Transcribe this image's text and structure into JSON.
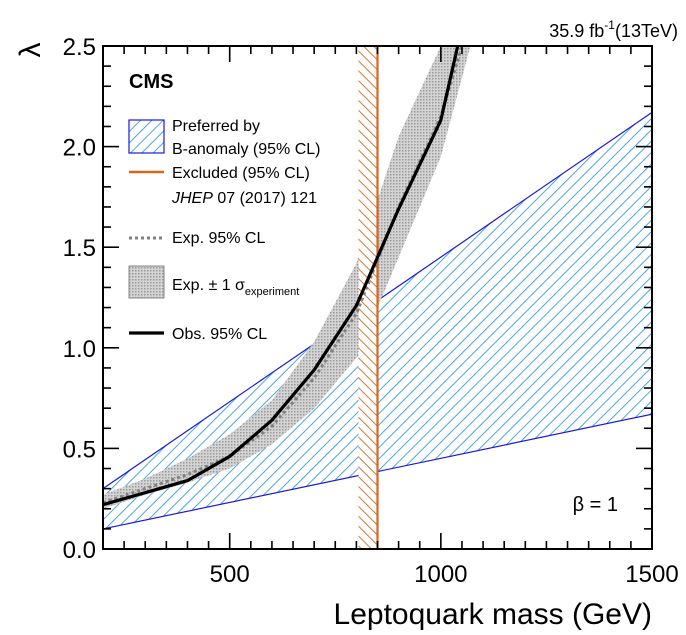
{
  "chart_data": {
    "type": "line",
    "experiment": "CMS",
    "lumi_label": "35.9 fb",
    "lumi_exponent": "-1",
    "energy_label": "(13TeV)",
    "xlabel": "Leptoquark mass (GeV)",
    "ylabel": "λ",
    "xlim": [
      200,
      1500
    ],
    "ylim": [
      0.0,
      2.5
    ],
    "x_ticks": [
      500,
      1000,
      1500
    ],
    "x_tick_labels": [
      "500",
      "1000",
      "1500"
    ],
    "y_ticks": [
      0.0,
      0.5,
      1.0,
      1.5,
      2.0,
      2.5
    ],
    "y_tick_labels": [
      "0.0",
      "0.5",
      "1.0",
      "1.5",
      "2.0",
      "2.5"
    ],
    "annotation": "β = 1",
    "legend": {
      "placement": "top-left",
      "preferred": [
        "Preferred by",
        "B-anomaly (95% CL)"
      ],
      "excluded": [
        "Excluded (95% CL)",
        "JHEP",
        " 07 (2017) 121"
      ],
      "expected": "Exp. 95% CL",
      "band": [
        "Exp. ± 1 σ",
        "experiment"
      ],
      "observed": "Obs. 95% CL"
    },
    "colors": {
      "preferred": "#1f8fe6",
      "preferred_edge": "#1a1adb",
      "excluded": "#d2691e",
      "band": "#b8b8b8",
      "expected": "#808080",
      "observed": "#000000"
    },
    "series": [
      {
        "name": "Preferred by B-anomaly (95% CL)",
        "kind": "region",
        "lower": {
          "x": [
            200,
            1500
          ],
          "y": [
            0.1,
            0.67
          ]
        },
        "upper": {
          "x": [
            200,
            1500
          ],
          "y": [
            0.3,
            2.17
          ]
        }
      },
      {
        "name": "Excluded (95% CL) JHEP 07 (2017) 121",
        "kind": "vertical-band",
        "x_range": [
          805,
          850
        ],
        "x_line": 850
      },
      {
        "name": "Exp. ± 1 σexperiment",
        "kind": "band",
        "x": [
          200,
          300,
          400,
          500,
          600,
          700,
          800,
          900,
          1000
        ],
        "low": [
          0.2,
          0.27,
          0.33,
          0.4,
          0.52,
          0.7,
          0.95,
          1.45,
          1.95
        ],
        "high": [
          0.27,
          0.35,
          0.45,
          0.57,
          0.74,
          1.03,
          1.42,
          2.05,
          2.5
        ],
        "top_x": [
          850,
          1070
        ],
        "top_y": [
          2.5,
          2.5
        ]
      },
      {
        "name": "Exp. 95% CL",
        "kind": "dashed-line",
        "x": [
          200,
          300,
          400,
          500,
          600,
          700,
          800,
          900,
          1000,
          1050
        ],
        "y": [
          0.23,
          0.3,
          0.37,
          0.46,
          0.61,
          0.85,
          1.17,
          1.7,
          2.15,
          2.5
        ]
      },
      {
        "name": "Obs. 95% CL",
        "kind": "line",
        "x": [
          200,
          300,
          400,
          500,
          600,
          700,
          800,
          900,
          1000,
          1040
        ],
        "y": [
          0.22,
          0.28,
          0.34,
          0.46,
          0.64,
          0.89,
          1.21,
          1.69,
          2.13,
          2.5
        ]
      }
    ]
  }
}
